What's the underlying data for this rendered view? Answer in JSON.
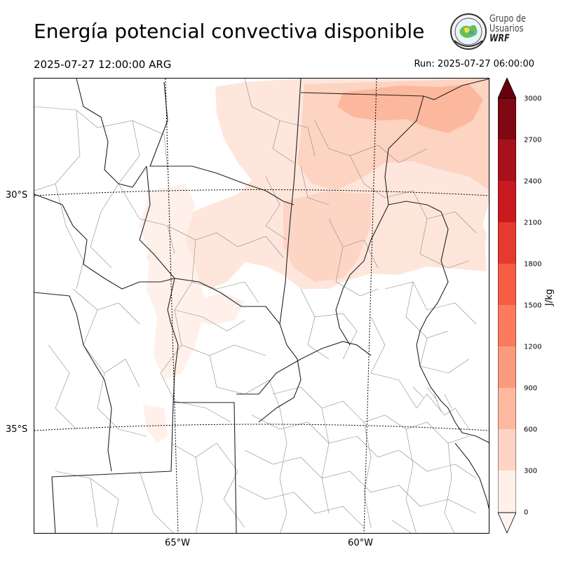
{
  "header": {
    "title": "Energía potencial convectiva disponible",
    "valid_time": "2025-07-27 12:00:00 ARG",
    "run_time": "Run: 2025-07-27 06:00:00"
  },
  "logo": {
    "line1": "Grupo de",
    "line2": "Usuarios",
    "line3": "WRF"
  },
  "map": {
    "variable": "CAPE",
    "region": "Centro de Argentina",
    "lat_labels": [
      "30°S",
      "35°S"
    ],
    "lon_labels": [
      "65°W",
      "60°W"
    ],
    "fill_color_low": "#fee8df",
    "fill_color_mid": "#fcd2c1",
    "fill_color_high": "#fbb59b"
  },
  "colorbar": {
    "unit": "J/kg",
    "ticks": [
      "0",
      "300",
      "600",
      "900",
      "1200",
      "1500",
      "1800",
      "2100",
      "2400",
      "2700",
      "3000"
    ],
    "colors": [
      "#fff0ea",
      "#fed9cb",
      "#fcbba1",
      "#fc9b7e",
      "#fb7b5c",
      "#f45a42",
      "#e63a2e",
      "#ce1c1e",
      "#b0141a",
      "#8e0c13",
      "#6e0010"
    ],
    "extend_top_color": "#67000d",
    "extend_bottom_color": "#fff5f0"
  }
}
